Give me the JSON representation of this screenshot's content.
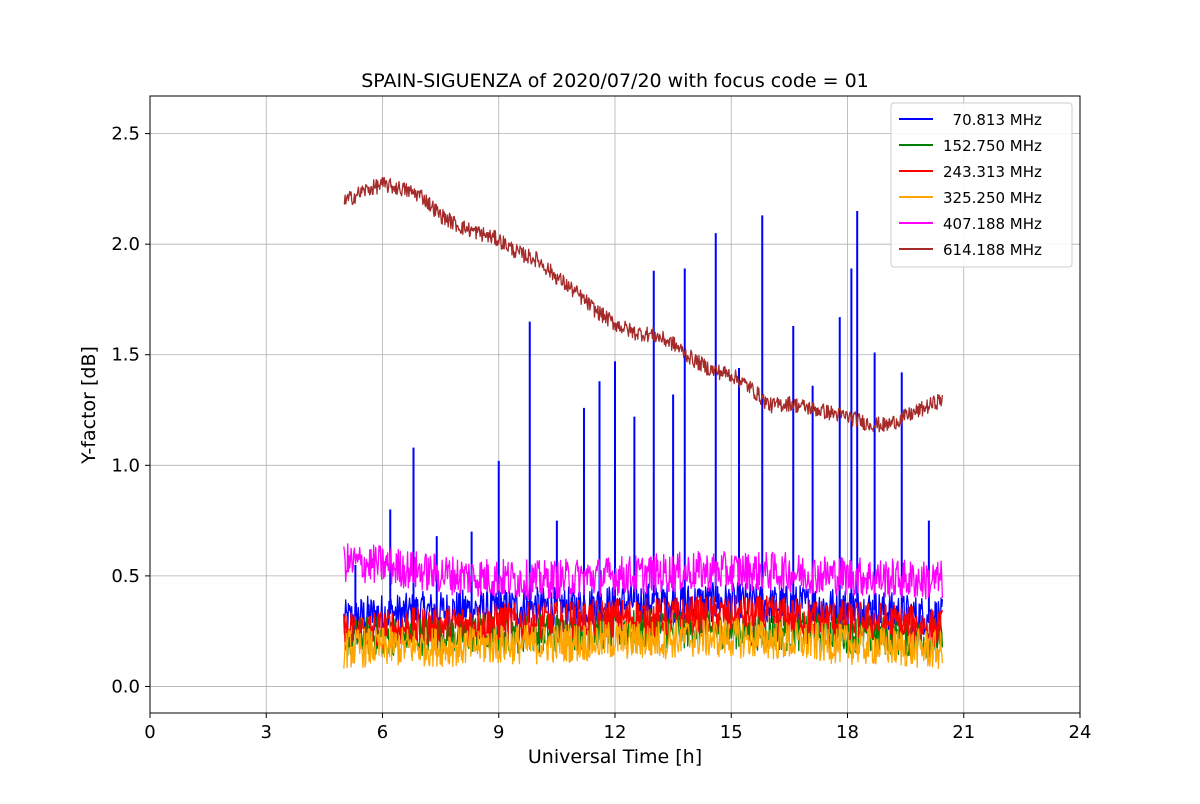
{
  "chart_data": {
    "type": "line",
    "title": "SPAIN-SIGUENZA of 2020/07/20 with focus code = 01",
    "xlabel": "Universal Time [h]",
    "ylabel": "Y-factor [dB]",
    "xlim": [
      0,
      24
    ],
    "ylim": [
      -0.12,
      2.67
    ],
    "xticks": [
      0,
      3,
      6,
      9,
      12,
      15,
      18,
      21,
      24
    ],
    "xtick_labels": [
      "0",
      "3",
      "6",
      "9",
      "12",
      "15",
      "18",
      "21",
      "24"
    ],
    "yticks": [
      0.0,
      0.5,
      1.0,
      1.5,
      2.0,
      2.5
    ],
    "ytick_labels": [
      "0.0",
      "0.5",
      "1.0",
      "1.5",
      "2.0",
      "2.5"
    ],
    "grid": true,
    "legend_position": "top-right",
    "series": [
      {
        "name": "  70.813 MHz",
        "color": "#0000ff",
        "x": [
          5.0,
          5.5,
          6.0,
          6.5,
          7.0,
          7.5,
          8.0,
          8.5,
          9.0,
          9.5,
          10.0,
          10.5,
          11.0,
          11.5,
          12.0,
          12.5,
          13.0,
          13.5,
          14.0,
          14.5,
          15.0,
          15.5,
          16.0,
          16.5,
          17.0,
          17.5,
          18.0,
          18.5,
          19.0,
          19.5,
          20.0,
          20.45
        ],
        "y": [
          0.3,
          0.32,
          0.33,
          0.33,
          0.34,
          0.34,
          0.35,
          0.35,
          0.35,
          0.36,
          0.36,
          0.36,
          0.36,
          0.37,
          0.37,
          0.38,
          0.38,
          0.38,
          0.38,
          0.38,
          0.38,
          0.38,
          0.37,
          0.37,
          0.37,
          0.36,
          0.36,
          0.35,
          0.34,
          0.33,
          0.32,
          0.31
        ],
        "spikes": [
          {
            "x": 5.3,
            "y": 0.55
          },
          {
            "x": 6.2,
            "y": 0.8
          },
          {
            "x": 6.8,
            "y": 1.08
          },
          {
            "x": 7.4,
            "y": 0.68
          },
          {
            "x": 8.3,
            "y": 0.7
          },
          {
            "x": 9.0,
            "y": 1.02
          },
          {
            "x": 9.8,
            "y": 1.65
          },
          {
            "x": 10.5,
            "y": 0.75
          },
          {
            "x": 11.2,
            "y": 1.26
          },
          {
            "x": 11.6,
            "y": 1.38
          },
          {
            "x": 12.0,
            "y": 1.47
          },
          {
            "x": 12.5,
            "y": 1.22
          },
          {
            "x": 13.0,
            "y": 1.88
          },
          {
            "x": 13.5,
            "y": 1.32
          },
          {
            "x": 13.8,
            "y": 1.89
          },
          {
            "x": 14.6,
            "y": 2.05
          },
          {
            "x": 15.2,
            "y": 1.44
          },
          {
            "x": 15.8,
            "y": 2.13
          },
          {
            "x": 16.6,
            "y": 1.63
          },
          {
            "x": 17.1,
            "y": 1.36
          },
          {
            "x": 17.8,
            "y": 1.67
          },
          {
            "x": 18.1,
            "y": 1.89
          },
          {
            "x": 18.25,
            "y": 2.15
          },
          {
            "x": 18.7,
            "y": 1.51
          },
          {
            "x": 19.4,
            "y": 1.42
          },
          {
            "x": 20.1,
            "y": 0.75
          }
        ]
      },
      {
        "name": "152.750 MHz",
        "color": "#008000",
        "x": [
          5.0,
          6.0,
          7.0,
          8.0,
          9.0,
          10.0,
          11.0,
          12.0,
          13.0,
          14.0,
          15.0,
          16.0,
          17.0,
          18.0,
          19.0,
          20.0,
          20.45
        ],
        "y": [
          0.22,
          0.23,
          0.23,
          0.24,
          0.24,
          0.24,
          0.25,
          0.26,
          0.26,
          0.26,
          0.26,
          0.25,
          0.25,
          0.24,
          0.23,
          0.22,
          0.22
        ]
      },
      {
        "name": "243.313 MHz",
        "color": "#ff0000",
        "x": [
          5.0,
          6.0,
          7.0,
          8.0,
          9.0,
          10.0,
          11.0,
          12.0,
          13.0,
          14.0,
          15.0,
          16.0,
          17.0,
          18.0,
          19.0,
          20.0,
          20.45
        ],
        "y": [
          0.25,
          0.26,
          0.27,
          0.28,
          0.29,
          0.29,
          0.3,
          0.31,
          0.31,
          0.32,
          0.32,
          0.32,
          0.31,
          0.3,
          0.29,
          0.27,
          0.26
        ]
      },
      {
        "name": "325.250 MHz",
        "color": "#ffa500",
        "x": [
          5.0,
          6.0,
          7.0,
          8.0,
          9.0,
          10.0,
          11.0,
          12.0,
          13.0,
          14.0,
          15.0,
          16.0,
          17.0,
          18.0,
          19.0,
          20.0,
          20.45
        ],
        "y": [
          0.17,
          0.18,
          0.18,
          0.18,
          0.19,
          0.19,
          0.2,
          0.21,
          0.21,
          0.22,
          0.22,
          0.21,
          0.2,
          0.19,
          0.18,
          0.17,
          0.16
        ]
      },
      {
        "name": "407.188 MHz",
        "color": "#ff00ff",
        "x": [
          5.0,
          6.0,
          7.0,
          8.0,
          9.0,
          10.0,
          11.0,
          12.0,
          13.0,
          14.0,
          15.0,
          16.0,
          17.0,
          18.0,
          19.0,
          20.0,
          20.45
        ],
        "y": [
          0.56,
          0.55,
          0.52,
          0.5,
          0.49,
          0.48,
          0.49,
          0.5,
          0.51,
          0.52,
          0.52,
          0.52,
          0.51,
          0.5,
          0.49,
          0.48,
          0.48
        ]
      },
      {
        "name": "614.188 MHz",
        "color": "#a52a2a",
        "x": [
          5.0,
          5.5,
          6.0,
          6.5,
          7.0,
          7.5,
          8.0,
          8.5,
          9.0,
          9.5,
          10.0,
          10.5,
          11.0,
          11.5,
          12.0,
          12.5,
          13.0,
          13.5,
          14.0,
          14.5,
          15.0,
          15.5,
          16.0,
          16.5,
          17.0,
          17.5,
          18.0,
          18.5,
          19.0,
          19.5,
          20.0,
          20.45
        ],
        "y": [
          2.19,
          2.24,
          2.27,
          2.25,
          2.22,
          2.13,
          2.08,
          2.05,
          2.02,
          1.96,
          1.93,
          1.85,
          1.78,
          1.7,
          1.64,
          1.6,
          1.59,
          1.55,
          1.48,
          1.43,
          1.41,
          1.35,
          1.27,
          1.28,
          1.26,
          1.24,
          1.22,
          1.19,
          1.18,
          1.22,
          1.26,
          1.3
        ]
      }
    ]
  }
}
